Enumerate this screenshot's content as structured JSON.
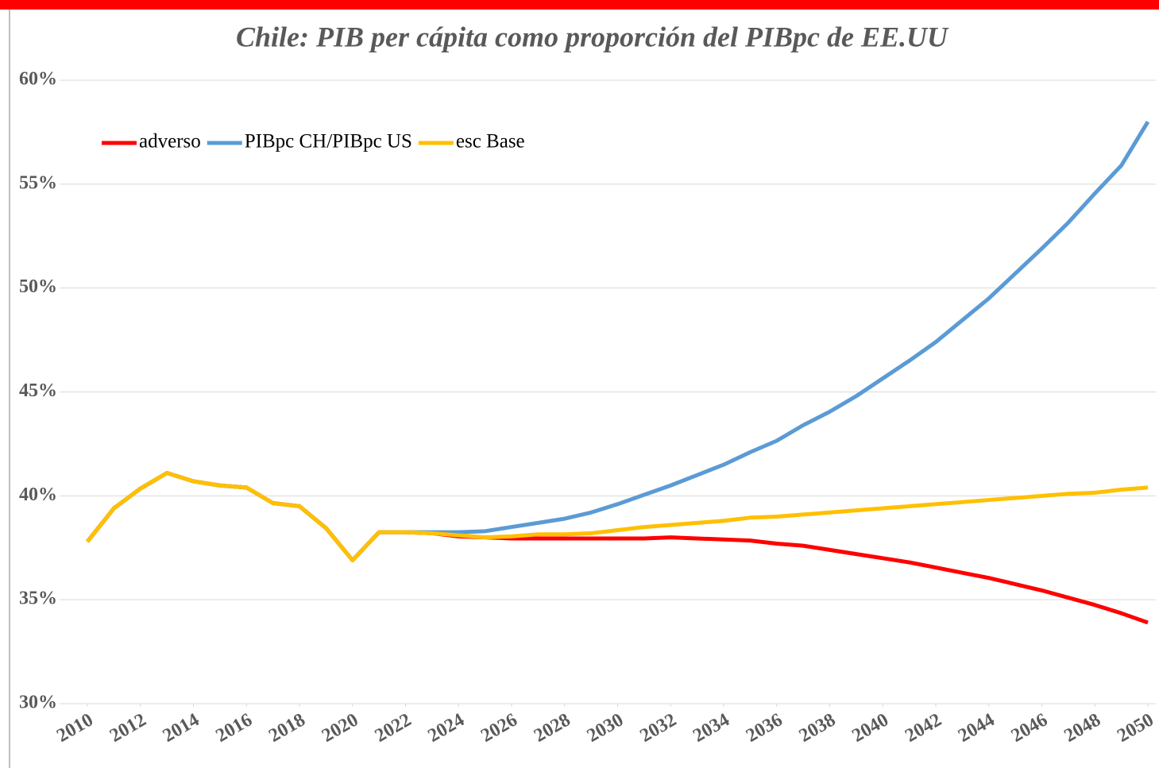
{
  "chart_data": {
    "type": "line",
    "title": "Chile: PIB per cápita como proporción del PIBpc de EE.UU",
    "x": [
      2010,
      2011,
      2012,
      2013,
      2014,
      2015,
      2016,
      2017,
      2018,
      2019,
      2020,
      2021,
      2022,
      2023,
      2024,
      2025,
      2026,
      2027,
      2028,
      2029,
      2030,
      2031,
      2032,
      2033,
      2034,
      2035,
      2036,
      2037,
      2038,
      2039,
      2040,
      2041,
      2042,
      2043,
      2044,
      2045,
      2046,
      2047,
      2048,
      2049,
      2050
    ],
    "series": [
      {
        "name": "adverso",
        "color": "#ff0000",
        "values": [
          37.8,
          39.4,
          40.35,
          41.1,
          40.7,
          40.5,
          40.4,
          39.65,
          39.5,
          38.45,
          36.9,
          38.25,
          38.25,
          38.2,
          38.05,
          38.0,
          37.95,
          37.95,
          37.95,
          37.95,
          37.95,
          37.95,
          38.0,
          37.95,
          37.9,
          37.85,
          37.7,
          37.6,
          37.4,
          37.2,
          37.0,
          36.8,
          36.55,
          36.3,
          36.05,
          35.75,
          35.45,
          35.1,
          34.75,
          34.35,
          33.9
        ]
      },
      {
        "name": "PIBpc CH/PIBpc US",
        "color": "#5b9bd5",
        "values": [
          37.8,
          39.4,
          40.35,
          41.1,
          40.7,
          40.5,
          40.4,
          39.65,
          39.5,
          38.45,
          36.9,
          38.25,
          38.25,
          38.25,
          38.25,
          38.3,
          38.5,
          38.7,
          38.9,
          39.2,
          39.6,
          40.05,
          40.5,
          41.0,
          41.5,
          42.1,
          42.65,
          43.4,
          44.05,
          44.8,
          45.65,
          46.5,
          47.4,
          48.45,
          49.5,
          50.7,
          51.9,
          53.15,
          54.55,
          55.9,
          58.0
        ]
      },
      {
        "name": "esc Base",
        "color": "#ffc000",
        "values": [
          37.8,
          39.4,
          40.35,
          41.1,
          40.7,
          40.5,
          40.4,
          39.65,
          39.5,
          38.45,
          36.9,
          38.25,
          38.25,
          38.2,
          38.1,
          38.0,
          38.05,
          38.15,
          38.15,
          38.2,
          38.35,
          38.5,
          38.6,
          38.7,
          38.8,
          38.95,
          39.0,
          39.1,
          39.2,
          39.3,
          39.4,
          39.5,
          39.6,
          39.7,
          39.8,
          39.9,
          40.0,
          40.1,
          40.15,
          40.3,
          40.4
        ]
      }
    ],
    "xlim": [
      2010,
      2050
    ],
    "xticks": [
      2010,
      2012,
      2014,
      2016,
      2018,
      2020,
      2022,
      2024,
      2026,
      2028,
      2030,
      2032,
      2034,
      2036,
      2038,
      2040,
      2042,
      2044,
      2046,
      2048,
      2050
    ],
    "ylim": [
      30,
      60
    ],
    "yticks": [
      {
        "value": 30,
        "label": "30%"
      },
      {
        "value": 35,
        "label": "35%"
      },
      {
        "value": 40,
        "label": "40%"
      },
      {
        "value": 45,
        "label": "45%"
      },
      {
        "value": 50,
        "label": "50%"
      },
      {
        "value": 55,
        "label": "55%"
      },
      {
        "value": 60,
        "label": "60%"
      }
    ],
    "grid": true,
    "legend": "top-left"
  }
}
